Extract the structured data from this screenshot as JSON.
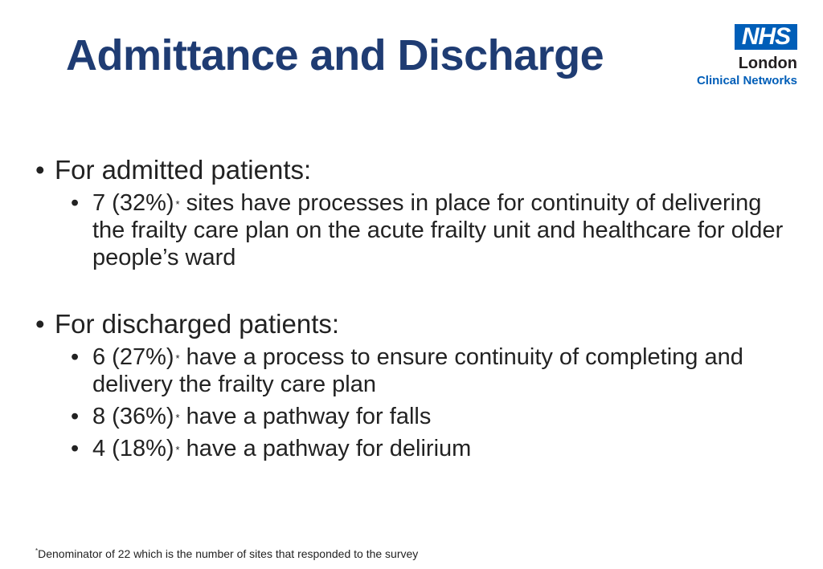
{
  "slide": {
    "title": "Admittance and Discharge"
  },
  "logo": {
    "nhs": "NHS",
    "region": "London",
    "network": "Clinical Networks",
    "colors": {
      "nhs_blue": "#005eb8",
      "dark": "#231f20"
    }
  },
  "sections": [
    {
      "heading": "For admitted patients:",
      "items": [
        {
          "count": "7 (32%)",
          "marker": "*",
          "text": " sites have processes in place for continuity of delivering the frailty care plan on the acute frailty unit and healthcare for older people’s ward"
        }
      ]
    },
    {
      "heading": "For discharged patients:",
      "items": [
        {
          "count": "6 (27%)",
          "marker": "*",
          "text": " have a process to ensure continuity of completing and delivery the frailty care plan"
        },
        {
          "count": "8 (36%)",
          "marker": "*",
          "text": " have a pathway for falls"
        },
        {
          "count": "4 (18%)",
          "marker": "*",
          "text": " have a pathway for delirium"
        }
      ]
    }
  ],
  "footnote": {
    "marker": "*",
    "text": "Denominator of 22 which is the number of sites that responded to the survey"
  },
  "colors": {
    "title": "#1f3c73",
    "body_text": "#222222",
    "background": "#ffffff"
  }
}
